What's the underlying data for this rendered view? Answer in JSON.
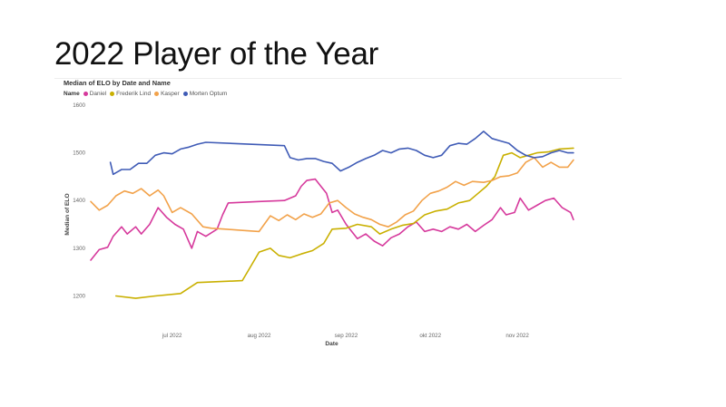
{
  "slide": {
    "title": "2022 Player of the Year"
  },
  "chart_data": {
    "type": "line",
    "title": "Median of ELO by Date and Name",
    "legend_title": "Name",
    "legend_position": "top-left",
    "xlabel": "Date",
    "ylabel": "Median of ELO",
    "ylim": [
      1180,
      1600
    ],
    "yticks": [
      1200,
      1300,
      1400,
      1500,
      1600
    ],
    "xlim": [
      "2022-06-02",
      "2022-11-22"
    ],
    "xticks": [
      {
        "date": "2022-07-01",
        "label": "jul 2022"
      },
      {
        "date": "2022-08-01",
        "label": "aug 2022"
      },
      {
        "date": "2022-09-01",
        "label": "sep 2022"
      },
      {
        "date": "2022-10-01",
        "label": "okt 2022"
      },
      {
        "date": "2022-11-01",
        "label": "nov 2022"
      }
    ],
    "grid": false,
    "series": [
      {
        "name": "Daniel",
        "color": "#D6399C",
        "points": [
          [
            "2022-06-02",
            1275
          ],
          [
            "2022-06-05",
            1297
          ],
          [
            "2022-06-08",
            1302
          ],
          [
            "2022-06-10",
            1325
          ],
          [
            "2022-06-13",
            1345
          ],
          [
            "2022-06-15",
            1330
          ],
          [
            "2022-06-18",
            1345
          ],
          [
            "2022-06-20",
            1330
          ],
          [
            "2022-06-23",
            1350
          ],
          [
            "2022-06-26",
            1385
          ],
          [
            "2022-06-29",
            1365
          ],
          [
            "2022-07-02",
            1350
          ],
          [
            "2022-07-05",
            1340
          ],
          [
            "2022-07-08",
            1300
          ],
          [
            "2022-07-10",
            1335
          ],
          [
            "2022-07-13",
            1325
          ],
          [
            "2022-07-17",
            1340
          ],
          [
            "2022-07-19",
            1370
          ],
          [
            "2022-07-21",
            1395
          ],
          [
            "2022-08-01",
            1398
          ],
          [
            "2022-08-10",
            1400
          ],
          [
            "2022-08-12",
            1405
          ],
          [
            "2022-08-14",
            1410
          ],
          [
            "2022-08-16",
            1430
          ],
          [
            "2022-08-18",
            1442
          ],
          [
            "2022-08-21",
            1445
          ],
          [
            "2022-08-23",
            1430
          ],
          [
            "2022-08-25",
            1415
          ],
          [
            "2022-08-27",
            1375
          ],
          [
            "2022-08-29",
            1380
          ],
          [
            "2022-09-01",
            1350
          ],
          [
            "2022-09-03",
            1335
          ],
          [
            "2022-09-05",
            1320
          ],
          [
            "2022-09-08",
            1330
          ],
          [
            "2022-09-11",
            1315
          ],
          [
            "2022-09-14",
            1305
          ],
          [
            "2022-09-17",
            1322
          ],
          [
            "2022-09-20",
            1330
          ],
          [
            "2022-09-23",
            1345
          ],
          [
            "2022-09-26",
            1355
          ],
          [
            "2022-09-29",
            1335
          ],
          [
            "2022-10-02",
            1340
          ],
          [
            "2022-10-05",
            1335
          ],
          [
            "2022-10-08",
            1345
          ],
          [
            "2022-10-11",
            1340
          ],
          [
            "2022-10-14",
            1350
          ],
          [
            "2022-10-17",
            1335
          ],
          [
            "2022-10-20",
            1348
          ],
          [
            "2022-10-23",
            1360
          ],
          [
            "2022-10-26",
            1385
          ],
          [
            "2022-10-28",
            1370
          ],
          [
            "2022-10-31",
            1375
          ],
          [
            "2022-11-02",
            1405
          ],
          [
            "2022-11-05",
            1380
          ],
          [
            "2022-11-08",
            1390
          ],
          [
            "2022-11-11",
            1400
          ],
          [
            "2022-11-14",
            1405
          ],
          [
            "2022-11-17",
            1385
          ],
          [
            "2022-11-20",
            1375
          ],
          [
            "2022-11-21",
            1360
          ]
        ]
      },
      {
        "name": "Frederik Lind",
        "color": "#C9B000",
        "points": [
          [
            "2022-06-11",
            1200
          ],
          [
            "2022-06-18",
            1195
          ],
          [
            "2022-06-25",
            1200
          ],
          [
            "2022-07-04",
            1205
          ],
          [
            "2022-07-10",
            1228
          ],
          [
            "2022-07-26",
            1232
          ],
          [
            "2022-07-29",
            1262
          ],
          [
            "2022-08-01",
            1292
          ],
          [
            "2022-08-05",
            1300
          ],
          [
            "2022-08-08",
            1285
          ],
          [
            "2022-08-12",
            1280
          ],
          [
            "2022-08-16",
            1288
          ],
          [
            "2022-08-20",
            1295
          ],
          [
            "2022-08-24",
            1310
          ],
          [
            "2022-08-27",
            1340
          ],
          [
            "2022-09-01",
            1342
          ],
          [
            "2022-09-05",
            1350
          ],
          [
            "2022-09-10",
            1345
          ],
          [
            "2022-09-13",
            1330
          ],
          [
            "2022-09-17",
            1340
          ],
          [
            "2022-09-21",
            1348
          ],
          [
            "2022-09-25",
            1352
          ],
          [
            "2022-09-29",
            1370
          ],
          [
            "2022-10-03",
            1378
          ],
          [
            "2022-10-07",
            1382
          ],
          [
            "2022-10-11",
            1395
          ],
          [
            "2022-10-15",
            1400
          ],
          [
            "2022-10-18",
            1415
          ],
          [
            "2022-10-21",
            1430
          ],
          [
            "2022-10-24",
            1450
          ],
          [
            "2022-10-27",
            1495
          ],
          [
            "2022-10-30",
            1500
          ],
          [
            "2022-11-02",
            1490
          ],
          [
            "2022-11-05",
            1495
          ],
          [
            "2022-11-08",
            1500
          ],
          [
            "2022-11-12",
            1502
          ],
          [
            "2022-11-16",
            1508
          ],
          [
            "2022-11-21",
            1510
          ]
        ]
      },
      {
        "name": "Kasper",
        "color": "#F2A24A",
        "points": [
          [
            "2022-06-02",
            1398
          ],
          [
            "2022-06-05",
            1380
          ],
          [
            "2022-06-08",
            1390
          ],
          [
            "2022-06-11",
            1410
          ],
          [
            "2022-06-14",
            1420
          ],
          [
            "2022-06-17",
            1415
          ],
          [
            "2022-06-20",
            1425
          ],
          [
            "2022-06-23",
            1410
          ],
          [
            "2022-06-26",
            1422
          ],
          [
            "2022-06-28",
            1410
          ],
          [
            "2022-07-01",
            1375
          ],
          [
            "2022-07-04",
            1385
          ],
          [
            "2022-07-08",
            1372
          ],
          [
            "2022-07-12",
            1345
          ],
          [
            "2022-07-15",
            1342
          ],
          [
            "2022-07-20",
            1340
          ],
          [
            "2022-07-25",
            1338
          ],
          [
            "2022-08-01",
            1335
          ],
          [
            "2022-08-05",
            1368
          ],
          [
            "2022-08-08",
            1358
          ],
          [
            "2022-08-11",
            1370
          ],
          [
            "2022-08-14",
            1360
          ],
          [
            "2022-08-17",
            1372
          ],
          [
            "2022-08-20",
            1365
          ],
          [
            "2022-08-23",
            1372
          ],
          [
            "2022-08-26",
            1395
          ],
          [
            "2022-08-29",
            1400
          ],
          [
            "2022-09-01",
            1385
          ],
          [
            "2022-09-04",
            1372
          ],
          [
            "2022-09-07",
            1365
          ],
          [
            "2022-09-10",
            1360
          ],
          [
            "2022-09-13",
            1350
          ],
          [
            "2022-09-16",
            1345
          ],
          [
            "2022-09-19",
            1355
          ],
          [
            "2022-09-22",
            1370
          ],
          [
            "2022-09-25",
            1378
          ],
          [
            "2022-09-28",
            1400
          ],
          [
            "2022-10-01",
            1415
          ],
          [
            "2022-10-04",
            1420
          ],
          [
            "2022-10-07",
            1428
          ],
          [
            "2022-10-10",
            1440
          ],
          [
            "2022-10-13",
            1432
          ],
          [
            "2022-10-16",
            1440
          ],
          [
            "2022-10-20",
            1438
          ],
          [
            "2022-10-23",
            1442
          ],
          [
            "2022-10-26",
            1450
          ],
          [
            "2022-10-29",
            1452
          ],
          [
            "2022-11-01",
            1458
          ],
          [
            "2022-11-04",
            1480
          ],
          [
            "2022-11-07",
            1490
          ],
          [
            "2022-11-10",
            1470
          ],
          [
            "2022-11-13",
            1480
          ],
          [
            "2022-11-16",
            1470
          ],
          [
            "2022-11-19",
            1470
          ],
          [
            "2022-11-21",
            1485
          ]
        ]
      },
      {
        "name": "Morten Optum",
        "color": "#3F5BB6",
        "points": [
          [
            "2022-06-09",
            1480
          ],
          [
            "2022-06-10",
            1455
          ],
          [
            "2022-06-13",
            1465
          ],
          [
            "2022-06-16",
            1465
          ],
          [
            "2022-06-19",
            1478
          ],
          [
            "2022-06-22",
            1478
          ],
          [
            "2022-06-25",
            1495
          ],
          [
            "2022-06-28",
            1500
          ],
          [
            "2022-07-01",
            1498
          ],
          [
            "2022-07-04",
            1508
          ],
          [
            "2022-07-07",
            1512
          ],
          [
            "2022-07-10",
            1518
          ],
          [
            "2022-07-13",
            1522
          ],
          [
            "2022-08-10",
            1515
          ],
          [
            "2022-08-12",
            1490
          ],
          [
            "2022-08-15",
            1485
          ],
          [
            "2022-08-18",
            1488
          ],
          [
            "2022-08-21",
            1488
          ],
          [
            "2022-08-24",
            1482
          ],
          [
            "2022-08-27",
            1478
          ],
          [
            "2022-08-30",
            1462
          ],
          [
            "2022-09-02",
            1470
          ],
          [
            "2022-09-05",
            1480
          ],
          [
            "2022-09-08",
            1488
          ],
          [
            "2022-09-11",
            1495
          ],
          [
            "2022-09-14",
            1505
          ],
          [
            "2022-09-17",
            1500
          ],
          [
            "2022-09-20",
            1508
          ],
          [
            "2022-09-23",
            1510
          ],
          [
            "2022-09-26",
            1505
          ],
          [
            "2022-09-29",
            1495
          ],
          [
            "2022-10-02",
            1490
          ],
          [
            "2022-10-05",
            1495
          ],
          [
            "2022-10-08",
            1515
          ],
          [
            "2022-10-11",
            1520
          ],
          [
            "2022-10-14",
            1518
          ],
          [
            "2022-10-17",
            1530
          ],
          [
            "2022-10-20",
            1545
          ],
          [
            "2022-10-23",
            1530
          ],
          [
            "2022-10-26",
            1525
          ],
          [
            "2022-10-29",
            1520
          ],
          [
            "2022-11-01",
            1505
          ],
          [
            "2022-11-04",
            1495
          ],
          [
            "2022-11-07",
            1490
          ],
          [
            "2022-11-10",
            1492
          ],
          [
            "2022-11-13",
            1500
          ],
          [
            "2022-11-16",
            1505
          ],
          [
            "2022-11-19",
            1500
          ],
          [
            "2022-11-21",
            1500
          ]
        ]
      }
    ]
  }
}
